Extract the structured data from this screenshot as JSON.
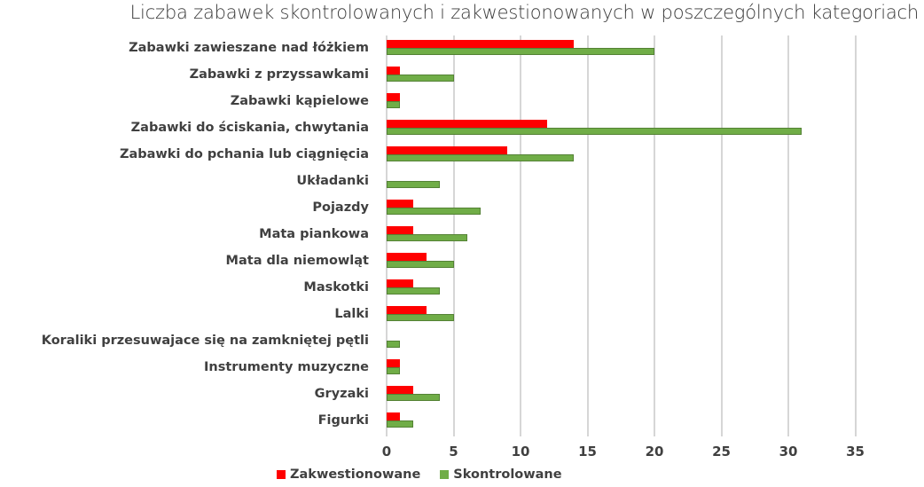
{
  "chart_data": {
    "type": "bar",
    "orientation": "horizontal",
    "title": "Liczba zabawek skontrolowanych i zakwestionowanych w poszczególnych kategoriach",
    "xlabel": "",
    "ylabel": "",
    "xlim": [
      0,
      35
    ],
    "x_ticks": [
      "0",
      "5",
      "10",
      "15",
      "20",
      "25",
      "30",
      "35"
    ],
    "grid": true,
    "legend_position": "bottom-left",
    "categories": [
      "Zabawki zawieszane nad łóżkiem",
      "Zabawki z przyssawkami",
      "Zabawki kąpielowe",
      "Zabawki do ściskania, chwytania",
      "Zabawki do pchania lub ciągnięcia",
      "Układanki",
      "Pojazdy",
      "Mata piankowa",
      "Mata dla niemowląt",
      "Maskotki",
      "Lalki",
      "Koraliki przesuwajace się na zamkniętej pętli",
      "Instrumenty muzyczne",
      "Gryzaki",
      "Figurki"
    ],
    "series": [
      {
        "name": "Zakwestionowane",
        "color": "#ff0000",
        "values": [
          14,
          1,
          1,
          12,
          9,
          0,
          2,
          2,
          3,
          2,
          3,
          0,
          1,
          2,
          1
        ]
      },
      {
        "name": "Skontrolowane",
        "color": "#70ad47",
        "values": [
          20,
          5,
          1,
          31,
          14,
          4,
          7,
          6,
          5,
          4,
          5,
          1,
          1,
          4,
          2
        ]
      }
    ]
  }
}
